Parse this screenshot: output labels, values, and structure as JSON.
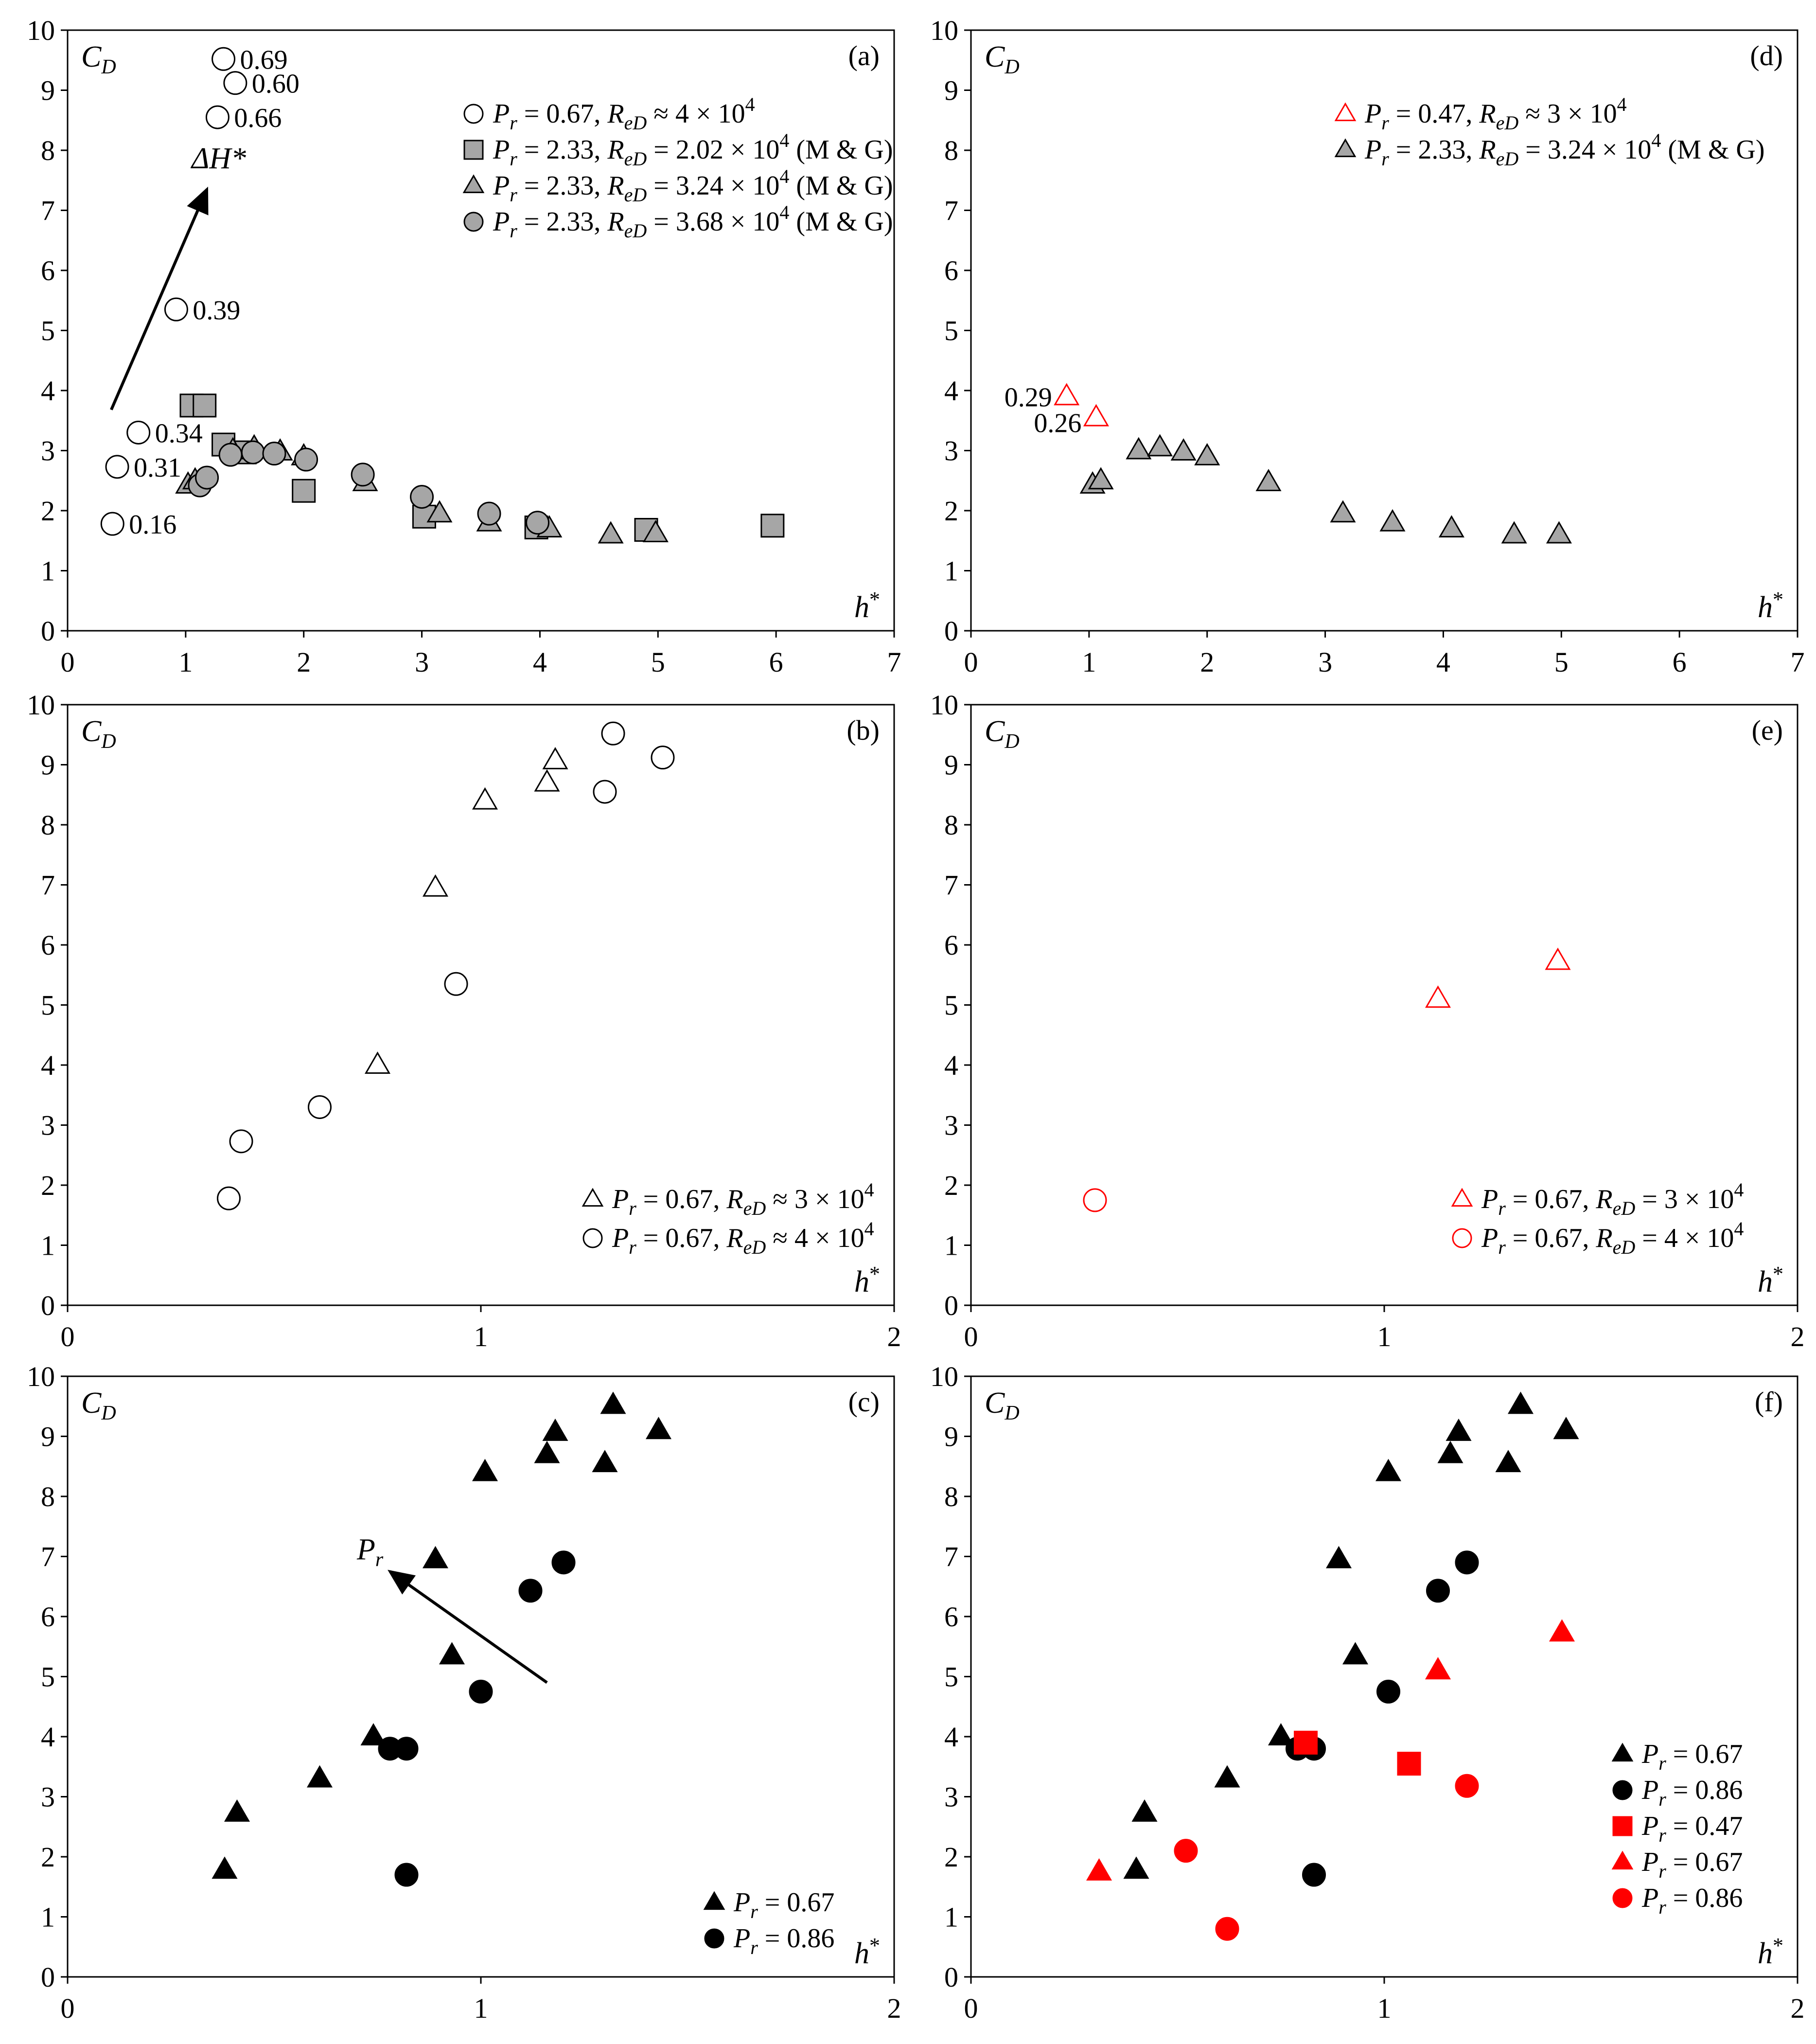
{
  "figure_title": "",
  "chart_data": [
    {
      "id": "a",
      "type": "scatter",
      "panel_label": "(a)",
      "ylabel": "C_D",
      "xlabel": "h*",
      "xlim": [
        0,
        7
      ],
      "ylim": [
        0,
        10
      ],
      "x_ticks": [
        "0",
        "1",
        "2",
        "3",
        "4",
        "5",
        "6",
        "7"
      ],
      "y_ticks": [
        "0",
        "1",
        "2",
        "3",
        "4",
        "5",
        "6",
        "7",
        "8",
        "9",
        "10"
      ],
      "series": [
        {
          "name": "P_r = 0.67, R_eD ≈ 4 × 10^4",
          "legend": {
            "p": "P",
            "psub": "r",
            "mid": " = 0.67, ",
            "r": "R",
            "rsub": "eD",
            "rest": " ≈ 4 × 10",
            "exp": "4",
            "suffix": ""
          },
          "marker": "circle",
          "fill": "#ffffff",
          "stroke": "#000000",
          "points": [
            [
              0.38,
              1.78
            ],
            [
              0.42,
              2.73
            ],
            [
              0.6,
              3.3
            ],
            [
              0.92,
              5.35
            ],
            [
              1.27,
              8.55
            ],
            [
              1.32,
              9.52
            ],
            [
              1.42,
              9.12
            ]
          ],
          "labels": [
            "0.16",
            "0.31",
            "0.34",
            "0.39",
            "0.66",
            "0.69",
            "0.60"
          ]
        },
        {
          "name": "P_r = 2.33, R_eD = 2.02 × 10^4 (M & G)",
          "legend": {
            "p": "P",
            "psub": "r",
            "mid": " = 2.33, ",
            "r": "R",
            "rsub": "eD",
            "rest": " = 2.02 × 10",
            "exp": "4",
            "suffix": " (M & G)"
          },
          "marker": "square",
          "fill": "#a6a6a6",
          "stroke": "#000000",
          "points": [
            [
              1.05,
              3.75
            ],
            [
              1.16,
              3.75
            ],
            [
              1.32,
              3.1
            ],
            [
              1.5,
              2.97
            ],
            [
              2.0,
              2.33
            ],
            [
              3.02,
              1.9
            ],
            [
              3.97,
              1.72
            ],
            [
              4.9,
              1.68
            ],
            [
              5.97,
              1.75
            ]
          ]
        },
        {
          "name": "P_r = 2.33, R_eD = 3.24 × 10^4 (M & G)",
          "legend": {
            "p": "P",
            "psub": "r",
            "mid": " = 2.33, ",
            "r": "R",
            "rsub": "eD",
            "rest": " = 3.24 × 10",
            "exp": "4",
            "suffix": " (M & G)"
          },
          "marker": "triangle",
          "fill": "#a6a6a6",
          "stroke": "#000000",
          "points": [
            [
              1.02,
              2.43
            ],
            [
              1.08,
              2.5
            ],
            [
              1.4,
              3.0
            ],
            [
              1.58,
              3.05
            ],
            [
              1.8,
              2.98
            ],
            [
              2.0,
              2.9
            ],
            [
              2.52,
              2.47
            ],
            [
              3.15,
              1.95
            ],
            [
              3.57,
              1.8
            ],
            [
              4.08,
              1.7
            ],
            [
              4.6,
              1.6
            ],
            [
              4.98,
              1.62
            ]
          ]
        },
        {
          "name": "P_r = 2.33, R_eD = 3.68 × 10^4 (M & G)",
          "legend": {
            "p": "P",
            "psub": "r",
            "mid": " = 2.33, ",
            "r": "R",
            "rsub": "eD",
            "rest": " = 3.68 × 10",
            "exp": "4",
            "suffix": " (M & G)"
          },
          "marker": "circle",
          "fill": "#a6a6a6",
          "stroke": "#000000",
          "points": [
            [
              1.12,
              2.42
            ],
            [
              1.18,
              2.55
            ],
            [
              1.38,
              2.93
            ],
            [
              1.57,
              2.97
            ],
            [
              1.75,
              2.95
            ],
            [
              2.02,
              2.85
            ],
            [
              2.5,
              2.6
            ],
            [
              3.0,
              2.23
            ],
            [
              3.57,
              1.95
            ],
            [
              3.98,
              1.8
            ]
          ]
        }
      ],
      "arrow": {
        "from": [
          0.37,
          3.68
        ],
        "to": [
          1.18,
          7.35
        ],
        "label": "ΔH*",
        "label_at": [
          1.05,
          7.7
        ]
      },
      "legend_position": "top-right"
    },
    {
      "id": "b",
      "type": "scatter",
      "panel_label": "(b)",
      "ylabel": "C_D",
      "xlabel": "h*",
      "xlim": [
        0,
        2
      ],
      "ylim": [
        0,
        10
      ],
      "x_ticks": [
        "0",
        "1",
        "2"
      ],
      "y_ticks": [
        "0",
        "1",
        "2",
        "3",
        "4",
        "5",
        "6",
        "7",
        "8",
        "9",
        "10"
      ],
      "series": [
        {
          "name": "P_r = 0.67, R_eD ≈ 3 × 10^4",
          "legend": {
            "p": "P",
            "psub": "r",
            "mid": " = 0.67, ",
            "r": "R",
            "rsub": "eD",
            "rest": " ≈ 3 × 10",
            "exp": "4",
            "suffix": ""
          },
          "marker": "triangle",
          "fill": "#ffffff",
          "stroke": "#000000",
          "points": [
            [
              0.75,
              4.0
            ],
            [
              0.89,
              6.95
            ],
            [
              1.01,
              8.4
            ],
            [
              1.16,
              8.7
            ],
            [
              1.18,
              9.07
            ]
          ]
        },
        {
          "name": "P_r = 0.67, R_eD ≈ 4 × 10^4",
          "legend": {
            "p": "P",
            "psub": "r",
            "mid": " = 0.67, ",
            "r": "R",
            "rsub": "eD",
            "rest": " ≈ 4 × 10",
            "exp": "4",
            "suffix": ""
          },
          "marker": "circle",
          "fill": "#ffffff",
          "stroke": "#000000",
          "points": [
            [
              0.39,
              1.78
            ],
            [
              0.42,
              2.73
            ],
            [
              0.61,
              3.3
            ],
            [
              0.94,
              5.35
            ],
            [
              1.3,
              8.55
            ],
            [
              1.32,
              9.52
            ],
            [
              1.44,
              9.12
            ]
          ]
        }
      ],
      "legend_position": "bottom-right"
    },
    {
      "id": "c",
      "type": "scatter",
      "panel_label": "(c)",
      "ylabel": "C_D",
      "xlabel": "h*",
      "xlim": [
        0,
        2
      ],
      "ylim": [
        0,
        10
      ],
      "x_ticks": [
        "0",
        "1",
        "2"
      ],
      "y_ticks": [
        "0",
        "1",
        "2",
        "3",
        "4",
        "5",
        "6",
        "7",
        "8",
        "9",
        "10"
      ],
      "series": [
        {
          "name": "P_r = 0.67",
          "legend": {
            "p": "P",
            "psub": "r",
            "mid": " = 0.67"
          },
          "marker": "triangle",
          "fill": "#000000",
          "stroke": "#000000",
          "points": [
            [
              0.38,
              1.78
            ],
            [
              0.41,
              2.73
            ],
            [
              0.61,
              3.3
            ],
            [
              0.74,
              4.0
            ],
            [
              0.89,
              6.95
            ],
            [
              0.93,
              5.35
            ],
            [
              1.01,
              8.4
            ],
            [
              1.16,
              8.7
            ],
            [
              1.18,
              9.07
            ],
            [
              1.3,
              8.55
            ],
            [
              1.32,
              9.52
            ],
            [
              1.43,
              9.1
            ]
          ]
        },
        {
          "name": "P_r = 0.86",
          "legend": {
            "p": "P",
            "psub": "r",
            "mid": " = 0.86"
          },
          "marker": "circle",
          "fill": "#000000",
          "stroke": "#000000",
          "points": [
            [
              0.78,
              3.8
            ],
            [
              0.82,
              3.8
            ],
            [
              0.82,
              1.7
            ],
            [
              1.0,
              4.75
            ],
            [
              1.12,
              6.43
            ],
            [
              1.2,
              6.9
            ]
          ]
        }
      ],
      "arrow": {
        "from": [
          1.16,
          4.9
        ],
        "to": [
          0.78,
          6.75
        ],
        "label": "P_r",
        "label_at": [
          0.7,
          6.95
        ]
      },
      "legend_position": "bottom-right"
    },
    {
      "id": "d",
      "type": "scatter",
      "panel_label": "(d)",
      "ylabel": "C_D",
      "xlabel": "h*",
      "xlim": [
        0,
        7
      ],
      "ylim": [
        0,
        10
      ],
      "x_ticks": [
        "0",
        "1",
        "2",
        "3",
        "4",
        "5",
        "6",
        "7"
      ],
      "y_ticks": [
        "0",
        "1",
        "2",
        "3",
        "4",
        "5",
        "6",
        "7",
        "8",
        "9",
        "10"
      ],
      "series": [
        {
          "name": "P_r = 0.47, R_eD ≈ 3 × 10^4",
          "legend": {
            "p": "P",
            "psub": "r",
            "mid": " = 0.47, ",
            "r": "R",
            "rsub": "eD",
            "rest": " ≈ 3 × 10",
            "exp": "4",
            "suffix": ""
          },
          "marker": "triangle",
          "fill": "#ffffff",
          "stroke": "#ff0000",
          "points": [
            [
              0.81,
              3.9
            ],
            [
              1.06,
              3.55
            ]
          ],
          "labels": [
            "0.29",
            "0.26"
          ]
        },
        {
          "name": "P_r = 2.33, R_eD = 3.24 × 10^4 (M & G)",
          "legend": {
            "p": "P",
            "psub": "r",
            "mid": " = 2.33, ",
            "r": "R",
            "rsub": "eD",
            "rest": " = 3.24 × 10",
            "exp": "4",
            "suffix": " (M & G)"
          },
          "marker": "triangle",
          "fill": "#a6a6a6",
          "stroke": "#000000",
          "points": [
            [
              1.03,
              2.43
            ],
            [
              1.1,
              2.5
            ],
            [
              1.42,
              3.0
            ],
            [
              1.6,
              3.05
            ],
            [
              1.8,
              2.98
            ],
            [
              2.0,
              2.9
            ],
            [
              2.52,
              2.47
            ],
            [
              3.15,
              1.95
            ],
            [
              3.57,
              1.8
            ],
            [
              4.07,
              1.7
            ],
            [
              4.6,
              1.6
            ],
            [
              4.98,
              1.6
            ]
          ]
        }
      ],
      "legend_position": "top-right"
    },
    {
      "id": "e",
      "type": "scatter",
      "panel_label": "(e)",
      "ylabel": "C_D",
      "xlabel": "h*",
      "xlim": [
        0,
        2
      ],
      "ylim": [
        0,
        10
      ],
      "x_ticks": [
        "0",
        "1",
        "2"
      ],
      "y_ticks": [
        "0",
        "1",
        "2",
        "3",
        "4",
        "5",
        "6",
        "7",
        "8",
        "9",
        "10"
      ],
      "series": [
        {
          "name": "P_r = 0.67, R_eD = 3 × 10^4",
          "legend": {
            "p": "P",
            "psub": "r",
            "mid": " = 0.67, ",
            "r": "R",
            "rsub": "eD",
            "rest": " = 3 × 10",
            "exp": "4",
            "suffix": ""
          },
          "marker": "triangle",
          "fill": "#ffffff",
          "stroke": "#ff0000",
          "points": [
            [
              1.13,
              5.1
            ],
            [
              1.42,
              5.73
            ]
          ]
        },
        {
          "name": "P_r = 0.67, R_eD = 4 × 10^4",
          "legend": {
            "p": "P",
            "psub": "r",
            "mid": " = 0.67, ",
            "r": "R",
            "rsub": "eD",
            "rest": " = 4 × 10",
            "exp": "4",
            "suffix": ""
          },
          "marker": "circle",
          "fill": "#ffffff",
          "stroke": "#ff0000",
          "points": [
            [
              0.3,
              1.75
            ]
          ]
        }
      ],
      "legend_position": "bottom-right"
    },
    {
      "id": "f",
      "type": "scatter",
      "panel_label": "(f)",
      "ylabel": "C_D",
      "xlabel": "h*",
      "xlim": [
        0,
        2
      ],
      "ylim": [
        0,
        10
      ],
      "x_ticks": [
        "0",
        "1",
        "2"
      ],
      "y_ticks": [
        "0",
        "1",
        "2",
        "3",
        "4",
        "5",
        "6",
        "7",
        "8",
        "9",
        "10"
      ],
      "series": [
        {
          "name": "P_r = 0.67",
          "legend": {
            "p": "P",
            "psub": "r",
            "mid": " = 0.67"
          },
          "marker": "triangle",
          "fill": "#000000",
          "stroke": "#000000",
          "points": [
            [
              0.4,
              1.78
            ],
            [
              0.42,
              2.73
            ],
            [
              0.62,
              3.3
            ],
            [
              0.75,
              4.0
            ],
            [
              0.89,
              6.95
            ],
            [
              0.93,
              5.35
            ],
            [
              1.01,
              8.4
            ],
            [
              1.16,
              8.7
            ],
            [
              1.18,
              9.07
            ],
            [
              1.3,
              8.55
            ],
            [
              1.33,
              9.52
            ],
            [
              1.44,
              9.1
            ]
          ]
        },
        {
          "name": "P_r = 0.86",
          "legend": {
            "p": "P",
            "psub": "r",
            "mid": " = 0.86"
          },
          "marker": "circle",
          "fill": "#000000",
          "stroke": "#000000",
          "points": [
            [
              0.79,
              3.8
            ],
            [
              0.83,
              3.8
            ],
            [
              0.83,
              1.7
            ],
            [
              1.01,
              4.75
            ],
            [
              1.13,
              6.43
            ],
            [
              1.2,
              6.9
            ]
          ]
        },
        {
          "name": "P_r = 0.47",
          "legend": {
            "p": "P",
            "psub": "r",
            "mid": " = 0.47"
          },
          "marker": "square",
          "fill": "#ff0000",
          "stroke": "#ff0000",
          "points": [
            [
              0.81,
              3.9
            ],
            [
              1.06,
              3.55
            ]
          ]
        },
        {
          "name": "P_r = 0.67",
          "legend": {
            "p": "P",
            "psub": "r",
            "mid": " = 0.67"
          },
          "marker": "triangle",
          "fill": "#ff0000",
          "stroke": "#ff0000",
          "points": [
            [
              0.31,
              1.75
            ],
            [
              1.13,
              5.1
            ],
            [
              1.43,
              5.73
            ]
          ]
        },
        {
          "name": "P_r = 0.86",
          "legend": {
            "p": "P",
            "psub": "r",
            "mid": " = 0.86"
          },
          "marker": "circle",
          "fill": "#ff0000",
          "stroke": "#ff0000",
          "points": [
            [
              0.52,
              2.1
            ],
            [
              0.62,
              0.8
            ],
            [
              1.2,
              3.18
            ]
          ]
        }
      ],
      "legend_position": "bottom-right"
    }
  ]
}
